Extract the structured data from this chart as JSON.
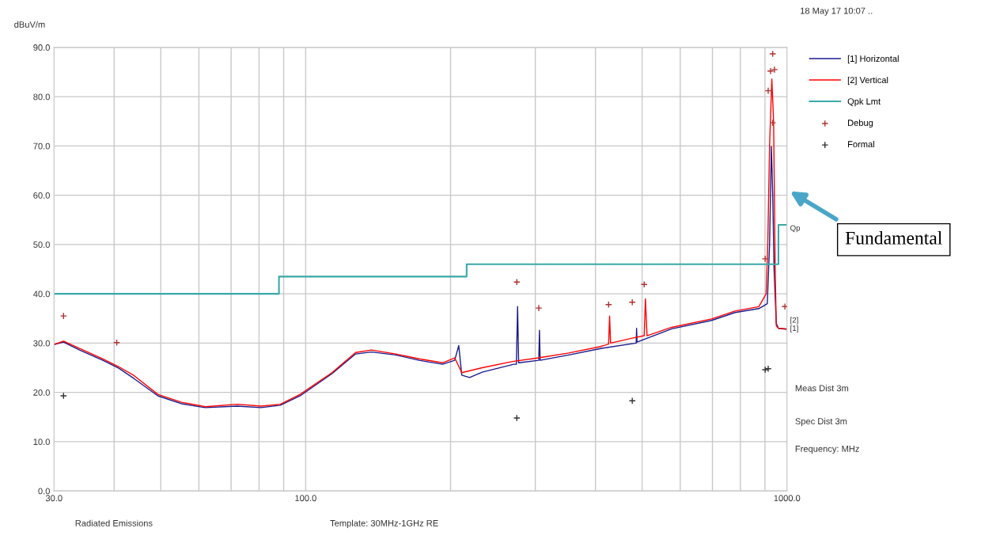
{
  "chart_data": {
    "type": "line",
    "ylabel": "dBuV/m",
    "xlabel": "Frequency: MHz",
    "log": "x",
    "grid": true,
    "legend": "top right",
    "xlim": [
      30,
      1000
    ],
    "ylim": [
      0,
      90
    ],
    "xticks": [
      {
        "value": 30,
        "label": "30.0"
      },
      {
        "value": 40,
        "label": null
      },
      {
        "value": 50,
        "label": null
      },
      {
        "value": 60,
        "label": null
      },
      {
        "value": 70,
        "label": null
      },
      {
        "value": 80,
        "label": null
      },
      {
        "value": 90,
        "label": null
      },
      {
        "value": 100,
        "label": "100.0"
      },
      {
        "value": 200,
        "label": null
      },
      {
        "value": 300,
        "label": null
      },
      {
        "value": 400,
        "label": null
      },
      {
        "value": 500,
        "label": null
      },
      {
        "value": 600,
        "label": null
      },
      {
        "value": 700,
        "label": null
      },
      {
        "value": 800,
        "label": null
      },
      {
        "value": 900,
        "label": null
      },
      {
        "value": 1000,
        "label": "1000.0"
      }
    ],
    "yticks": [
      {
        "value": 0,
        "label": "0.0"
      },
      {
        "value": 10,
        "label": "10.0"
      },
      {
        "value": 20,
        "label": "20.0"
      },
      {
        "value": 30,
        "label": "30.0"
      },
      {
        "value": 40,
        "label": "40.0"
      },
      {
        "value": 50,
        "label": "50.0"
      },
      {
        "value": 60,
        "label": "60.0"
      },
      {
        "value": 70,
        "label": "70.0"
      },
      {
        "value": 80,
        "label": "80.0"
      },
      {
        "value": 90,
        "label": "90.0"
      }
    ],
    "series": [
      {
        "name": "[1] Horizontal",
        "color": "#1a1a8c",
        "x": [
          30,
          31.4,
          33.9,
          37.9,
          40.9,
          44,
          49.3,
          55.2,
          61.9,
          72.1,
          80.8,
          88.6,
          97.4,
          113.4,
          127,
          137,
          153.8,
          172,
          192.5,
          204,
          208,
          211,
          219,
          232.6,
          270.5,
          274,
          275.6,
          277,
          305,
          306,
          307,
          352,
          410,
          486,
          487,
          488,
          576,
          697,
          780,
          874,
          910,
          920,
          928,
          934,
          940,
          950,
          960,
          1000
        ],
        "values": [
          29.7,
          30.2,
          28.6,
          26.5,
          24.9,
          22.8,
          19.3,
          17.7,
          16.9,
          17.2,
          16.9,
          17.4,
          19.3,
          23.8,
          27.8,
          28.2,
          27.6,
          26.5,
          25.7,
          26.5,
          29.5,
          23.5,
          23.0,
          24.1,
          25.7,
          25.7,
          37.4,
          26.0,
          26.5,
          32.6,
          26.5,
          27.6,
          28.9,
          30.0,
          33.0,
          30.2,
          32.9,
          34.6,
          36.2,
          37.0,
          38.0,
          50.0,
          69.9,
          60.0,
          45.0,
          34.0,
          33.0,
          32.8
        ]
      },
      {
        "name": "[2] Vertical",
        "color": "#ff0000",
        "x": [
          30,
          31.4,
          33.9,
          37.9,
          40.9,
          44,
          49.3,
          55.2,
          61.9,
          72.1,
          80.8,
          88.6,
          97.4,
          113.4,
          127,
          137,
          153.8,
          172,
          192.5,
          204,
          211,
          232.6,
          270.5,
          305,
          352,
          410,
          426,
          428,
          430,
          477,
          505,
          508,
          512,
          576,
          697,
          780,
          874,
          905,
          912,
          920,
          930,
          938,
          945,
          950,
          960,
          1000
        ],
        "values": [
          29.7,
          30.4,
          28.9,
          26.8,
          25.2,
          23.4,
          19.6,
          18.0,
          17.1,
          17.6,
          17.2,
          17.6,
          19.6,
          24.0,
          28.1,
          28.6,
          27.8,
          26.8,
          26.0,
          27.0,
          24.0,
          25.0,
          26.3,
          27.0,
          28.0,
          29.3,
          29.8,
          35.5,
          30.0,
          31.0,
          31.5,
          39.0,
          31.5,
          33.2,
          34.9,
          36.5,
          37.4,
          40.0,
          50.0,
          70.0,
          83.6,
          75.0,
          45.0,
          33.5,
          33.0,
          32.9
        ]
      },
      {
        "name": "Qpk Lmt",
        "type": "step",
        "color": "#3aa8a8",
        "x": [
          30,
          88,
          216,
          960,
          1000
        ],
        "values": [
          40,
          43.5,
          46,
          54,
          54
        ]
      },
      {
        "name": "Debug",
        "type": "scatter",
        "marker": "cross",
        "color": "#b03030",
        "x": [
          31.4,
          40.5,
          274.6,
          305,
          426,
          477,
          505,
          901,
          914,
          924,
          934,
          942,
          934,
          990
        ],
        "values": [
          35.5,
          30.1,
          42.4,
          37.1,
          37.8,
          38.3,
          41.9,
          47.1,
          81.2,
          85.2,
          88.7,
          85.5,
          74.7,
          37.4
        ]
      },
      {
        "name": "Formal",
        "type": "scatter",
        "marker": "cross",
        "color": "#333333",
        "x": [
          31.4,
          274.6,
          477,
          901,
          914
        ],
        "values": [
          19.3,
          14.8,
          18.3,
          24.6,
          24.8
        ]
      }
    ],
    "annotations": [
      "Fundamental",
      "Qp",
      "[2]",
      "[1]",
      "18 May 17 10:07 ..",
      "Meas Dist 3m",
      "Spec Dist 3m",
      "Radiated Emissions",
      "Template: 30MHz-1GHz RE"
    ]
  }
}
